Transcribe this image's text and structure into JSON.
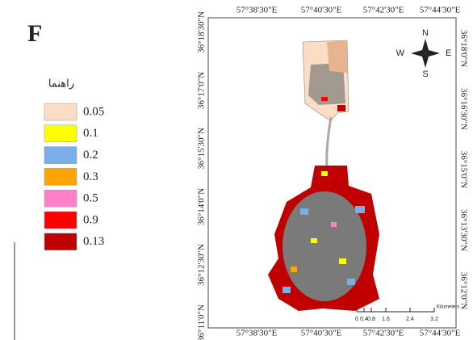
{
  "panel_label": "F",
  "legend": {
    "title": "راهنما",
    "items": [
      {
        "label": "0.05",
        "color": "#fbdcc4"
      },
      {
        "label": "0.1",
        "color": "#ffff00"
      },
      {
        "label": "0.2",
        "color": "#7aaee8"
      },
      {
        "label": "0.3",
        "color": "#ffa500"
      },
      {
        "label": "0.5",
        "color": "#ff80c8"
      },
      {
        "label": "0.9",
        "color": "#ff0000"
      },
      {
        "label": "0.13",
        "color": "#c00000"
      }
    ]
  },
  "map": {
    "top_labels": [
      "57°38'30\"E",
      "57°40'30\"E",
      "57°42'30\"E",
      "57°44'30\"E"
    ],
    "bottom_labels": [
      "57°38'30\"E",
      "57°40'30\"E",
      "57°42'30\"E",
      "57°44'30\"E"
    ],
    "left_labels": [
      "36°18'30\"N",
      "36°17'0\"N",
      "36°15'30\"N",
      "36°14'0\"N",
      "36°12'30\"N",
      "36°11'0\"N"
    ],
    "right_labels": [
      "36°18'0\"N",
      "36°16'30\"N",
      "36°15'0\"N",
      "36°13'30\"N",
      "36°12'0\"N"
    ],
    "compass": {
      "n": "N",
      "s": "S",
      "e": "E",
      "w": "W"
    },
    "scale": {
      "ticks": [
        "0",
        "0.4",
        "0.8",
        "1.6",
        "2.4",
        "3.2"
      ],
      "unit": "Kilometers"
    }
  }
}
